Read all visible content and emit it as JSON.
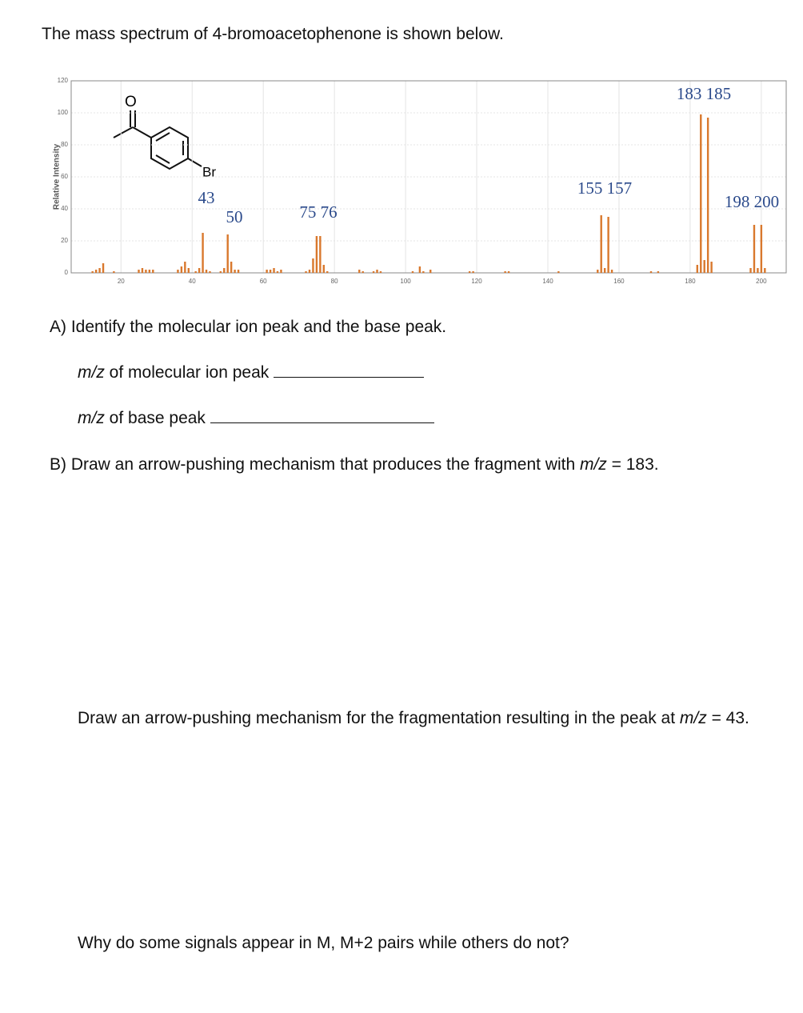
{
  "intro": "The mass spectrum of 4-bromoacetophenone is shown below.",
  "chart_data": {
    "type": "bar",
    "ylabel": "Relative Intensity",
    "structure_labels": [
      "O",
      "Br"
    ],
    "annotations": [
      "183 185",
      "155 157",
      "43",
      "50",
      "75 76",
      "198 200"
    ],
    "xlim": [
      6,
      207
    ],
    "ylim": [
      0,
      120
    ],
    "xticks": [
      20,
      40,
      60,
      80,
      100,
      120,
      140,
      160,
      180,
      200
    ],
    "yticks": [
      0,
      20,
      40,
      60,
      80,
      100,
      120
    ],
    "grid": true,
    "color": "#d9782d",
    "x": [
      12,
      13,
      14,
      15,
      18,
      25,
      26,
      27,
      28,
      29,
      36,
      37,
      38,
      39,
      41,
      42,
      43,
      44,
      45,
      48,
      49,
      50,
      51,
      52,
      53,
      61,
      62,
      63,
      64,
      65,
      72,
      73,
      74,
      75,
      76,
      77,
      78,
      87,
      88,
      91,
      92,
      93,
      102,
      104,
      105,
      107,
      118,
      119,
      128,
      129,
      143,
      154,
      155,
      156,
      157,
      158,
      169,
      171,
      182,
      183,
      184,
      185,
      186,
      197,
      198,
      199,
      200,
      201
    ],
    "values": [
      1,
      2,
      3,
      6,
      1,
      2,
      3,
      2,
      2,
      2,
      2,
      4,
      7,
      3,
      1,
      3,
      25,
      2,
      1,
      1,
      3,
      24,
      7,
      2,
      2,
      2,
      2,
      3,
      1,
      2,
      1,
      2,
      9,
      23,
      23,
      5,
      1,
      2,
      1,
      1,
      2,
      1,
      1,
      4,
      1,
      2,
      1,
      1,
      1,
      1,
      1,
      2,
      36,
      3,
      35,
      2,
      1,
      1,
      5,
      99,
      8,
      97,
      7,
      3,
      30,
      3,
      30,
      3
    ]
  },
  "questions": {
    "a": {
      "text": "A) Identify the molecular ion peak and the base peak.",
      "blanks": [
        {
          "var": "m/z",
          "label": "of molecular ion peak"
        },
        {
          "var": "m/z",
          "label": "of base peak"
        }
      ]
    },
    "b": {
      "text": "B) Draw an arrow-pushing mechanism that produces the fragment with",
      "var": "m/z",
      "tail": "= 183."
    },
    "c": {
      "text": "Draw an arrow-pushing mechanism for the fragmentation resulting in the peak at",
      "var": "m/z",
      "tail": "= 43."
    },
    "d": {
      "text": "Why do some signals appear in M, M+2 pairs while others do not?"
    }
  }
}
